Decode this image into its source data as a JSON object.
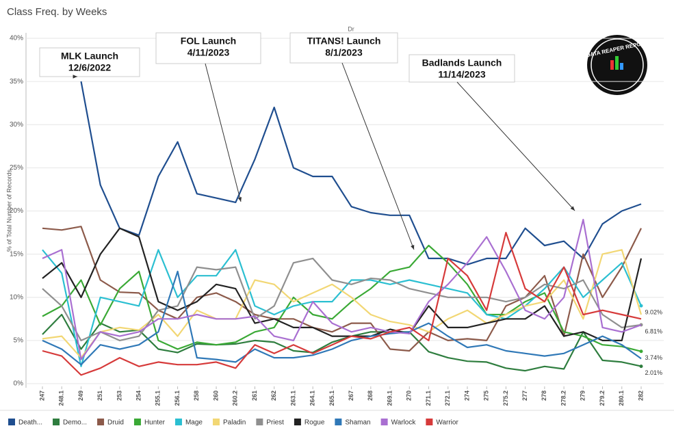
{
  "chart_data": {
    "type": "line",
    "title": "Class Freq. by Weeks",
    "header": "Dr",
    "y_label": "% of Total Number of Records",
    "logo": "DATA REAPER REPORT",
    "categories": [
      "247",
      "248.1",
      "249",
      "251",
      "253",
      "254",
      "255.1",
      "256.1",
      "258",
      "260",
      "260.2",
      "261",
      "262",
      "263.1",
      "264.1",
      "265.1",
      "267",
      "268",
      "269.1",
      "270",
      "271.1",
      "272.1",
      "274",
      "275",
      "275.2",
      "277",
      "278",
      "278.2",
      "279",
      "279.2",
      "280.1",
      "282"
    ],
    "ylim": [
      0,
      40
    ],
    "yticks": [
      {
        "value": 0,
        "label": "0%"
      },
      {
        "value": 5,
        "label": "5%"
      },
      {
        "value": 10,
        "label": "10%"
      },
      {
        "value": 15,
        "label": "15%"
      },
      {
        "value": 20,
        "label": "20%"
      },
      {
        "value": 25,
        "label": "25%"
      },
      {
        "value": 30,
        "label": "30%"
      },
      {
        "value": 35,
        "label": "35%"
      },
      {
        "value": 40,
        "label": "40%"
      }
    ],
    "grid": true,
    "legend": "bottom",
    "annotations": [
      {
        "lines": [
          "MLK Launch",
          "12/6/2022"
        ]
      },
      {
        "lines": [
          "FOL Launch",
          "4/11/2023"
        ]
      },
      {
        "lines": [
          "TITANS! Launch",
          "8/1/2023"
        ]
      },
      {
        "lines": [
          "Badlands Launch",
          "11/14/2023"
        ]
      }
    ],
    "series": [
      {
        "name": "Death...",
        "color": "#1f4e8f",
        "values": [
          null,
          null,
          35,
          23,
          18,
          17.2,
          24,
          28,
          22,
          21.5,
          21,
          26,
          32,
          25,
          24,
          24,
          20.5,
          19.8,
          19.5,
          19.5,
          14.5,
          14.5,
          13.8,
          14.5,
          14.5,
          18,
          16,
          16.5,
          14.5,
          18.5,
          20,
          20.8
        ]
      },
      {
        "name": "Demo...",
        "color": "#2e7d3e",
        "values": [
          5.7,
          8,
          4,
          7,
          6,
          6.2,
          4,
          3.6,
          4.6,
          4.5,
          4.6,
          5,
          4.8,
          3.8,
          3.6,
          4.8,
          5.5,
          6,
          6,
          6,
          3.7,
          3,
          2.6,
          2.5,
          1.8,
          1.5,
          2,
          1.7,
          6,
          2.7,
          2.5,
          2.01
        ],
        "value_labels": [
          null,
          null,
          null,
          null,
          null,
          null,
          null,
          null,
          null,
          null,
          null,
          null,
          null,
          null,
          null,
          null,
          null,
          null,
          null,
          null,
          null,
          null,
          null,
          null,
          null,
          null,
          null,
          null,
          null,
          null,
          null,
          "2.01%"
        ]
      },
      {
        "name": "Druid",
        "color": "#8c5a4a",
        "values": [
          18,
          17.8,
          18.2,
          12,
          10.6,
          10.5,
          8.5,
          7.5,
          10,
          10.5,
          9.5,
          8,
          7.5,
          7.5,
          6.5,
          6,
          7,
          7,
          4,
          3.8,
          6,
          5,
          5.2,
          5,
          9,
          10,
          12.5,
          5.5,
          15,
          10,
          13.5,
          18
        ]
      },
      {
        "name": "Hunter",
        "color": "#3aa935",
        "values": [
          7.8,
          9,
          12,
          6.8,
          11,
          13,
          5,
          4,
          4.8,
          4.5,
          4.8,
          6,
          6.5,
          10,
          8,
          7.5,
          9.5,
          11,
          13,
          13.5,
          16,
          14,
          11.5,
          8,
          8,
          9.5,
          10.5,
          6,
          5.5,
          4.5,
          4.3,
          3.74
        ],
        "value_labels": [
          null,
          null,
          null,
          null,
          null,
          null,
          null,
          null,
          null,
          null,
          null,
          null,
          null,
          null,
          null,
          null,
          null,
          null,
          null,
          null,
          null,
          null,
          null,
          null,
          null,
          null,
          null,
          null,
          null,
          null,
          null,
          "3.74%"
        ]
      },
      {
        "name": "Mage",
        "color": "#2bbfd1",
        "values": [
          15.5,
          12.8,
          2,
          10,
          9.5,
          9,
          15.5,
          10,
          12.5,
          12.5,
          15.5,
          9,
          8,
          9,
          9.5,
          9.5,
          12,
          12,
          11.5,
          12,
          11.5,
          11,
          10.5,
          8,
          7.5,
          9,
          11,
          13.5,
          10,
          12,
          14,
          9.02
        ],
        "value_labels": [
          null,
          null,
          null,
          null,
          null,
          null,
          null,
          null,
          null,
          null,
          null,
          null,
          null,
          null,
          null,
          null,
          null,
          null,
          null,
          null,
          null,
          null,
          null,
          null,
          null,
          null,
          null,
          null,
          null,
          null,
          null,
          "9.02%"
        ]
      },
      {
        "name": "Paladin",
        "color": "#f2d774",
        "values": [
          5.2,
          5.5,
          3,
          6,
          6.5,
          6.2,
          8,
          5.5,
          8.5,
          7.5,
          7.5,
          12,
          11.5,
          9.5,
          10.5,
          11.5,
          10,
          8,
          7.2,
          6.8,
          6,
          7.5,
          8.5,
          7,
          8,
          9,
          9.5,
          12,
          7.5,
          15,
          15.5,
          8
        ]
      },
      {
        "name": "Priest",
        "color": "#8f8f8f",
        "values": [
          11,
          9,
          5,
          6,
          5,
          5.5,
          8.5,
          9,
          13.5,
          13.2,
          13.5,
          7.5,
          9,
          14,
          14.5,
          12,
          11.5,
          12.2,
          12,
          11,
          10.5,
          10,
          10,
          10,
          9.5,
          10,
          11.5,
          11,
          12,
          8,
          6.5,
          6.81
        ],
        "value_labels": [
          null,
          null,
          null,
          null,
          null,
          null,
          null,
          null,
          null,
          null,
          null,
          null,
          null,
          null,
          null,
          null,
          null,
          null,
          null,
          null,
          null,
          null,
          null,
          null,
          null,
          null,
          null,
          null,
          null,
          null,
          null,
          "6.81%"
        ]
      },
      {
        "name": "Rogue",
        "color": "#222222",
        "values": [
          12.2,
          14,
          10,
          15,
          18,
          17,
          9.5,
          8.5,
          9.5,
          11.5,
          11,
          7,
          7.5,
          6.5,
          6.5,
          5.5,
          5.5,
          5.5,
          6.3,
          5.8,
          9,
          6.5,
          6.5,
          7,
          7.5,
          7.5,
          9,
          5.5,
          6,
          5,
          5,
          14.5
        ]
      },
      {
        "name": "Shaman",
        "color": "#2f78b7",
        "values": [
          5,
          4,
          2.2,
          4.5,
          4,
          4.5,
          6,
          13,
          3,
          2.8,
          2.5,
          4,
          3,
          3,
          3.3,
          4,
          5,
          5.5,
          5.8,
          6,
          7,
          5.5,
          4.2,
          4.5,
          3.8,
          3.5,
          3.2,
          3.5,
          4.5,
          5.5,
          4.5,
          2.9
        ]
      },
      {
        "name": "Warlock",
        "color": "#a96fd1",
        "values": [
          14.5,
          15.5,
          2.8,
          6,
          5.5,
          6,
          7.5,
          7.5,
          8,
          7.5,
          7.5,
          7.8,
          5.5,
          5,
          9.5,
          7,
          6,
          6.5,
          6,
          5.8,
          9.5,
          11.5,
          14,
          17,
          13,
          8.5,
          7.5,
          10,
          19,
          6.5,
          6,
          6.8
        ]
      },
      {
        "name": "Warrior",
        "color": "#d63a3a",
        "values": [
          3.8,
          3.2,
          1,
          1.8,
          3,
          2,
          2.5,
          2.2,
          2.2,
          2.5,
          1.8,
          4.5,
          3.5,
          4.5,
          3.5,
          4.5,
          5.5,
          5.2,
          6,
          6.5,
          5,
          14.5,
          12.5,
          8.5,
          17.5,
          11,
          9.5,
          13.5,
          8,
          8.5,
          8,
          7.5
        ]
      }
    ]
  }
}
